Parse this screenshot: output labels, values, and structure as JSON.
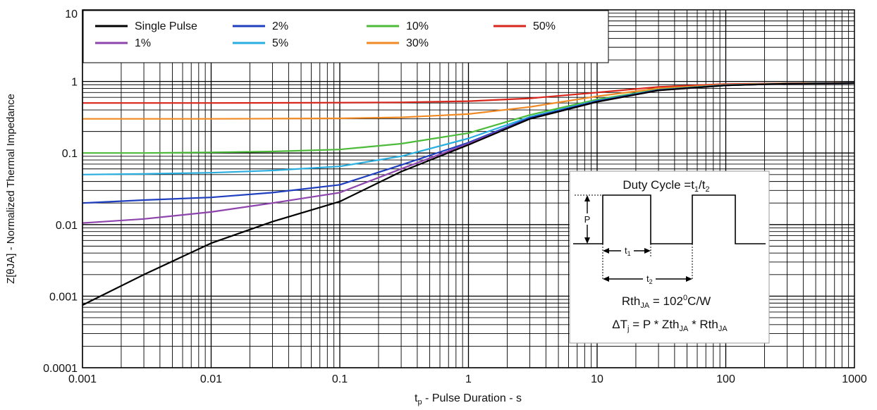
{
  "chart_data": {
    "type": "line",
    "title": "",
    "xlabel": "tp - Pulse Duration - s",
    "ylabel": "Z[θJA] - Normalized Thermal Impedance",
    "x_scale": "log",
    "y_scale": "log",
    "xlim": [
      0.001,
      1000
    ],
    "ylim": [
      0.0001,
      10
    ],
    "grid": true,
    "legend_position": "top-left",
    "x_ticks": [
      {
        "value": 0.001,
        "label": "0.001"
      },
      {
        "value": 0.01,
        "label": "0.01"
      },
      {
        "value": 0.1,
        "label": "0.1"
      },
      {
        "value": 1,
        "label": "1"
      },
      {
        "value": 10,
        "label": "10"
      },
      {
        "value": 100,
        "label": "100"
      },
      {
        "value": 1000,
        "label": "1000"
      }
    ],
    "y_ticks": [
      {
        "value": 0.0001,
        "label": "0.0001"
      },
      {
        "value": 0.001,
        "label": "0.001"
      },
      {
        "value": 0.01,
        "label": "0.01"
      },
      {
        "value": 0.1,
        "label": "0.1"
      },
      {
        "value": 1,
        "label": "1"
      },
      {
        "value": 10,
        "label": "10"
      }
    ],
    "series": [
      {
        "name": "Single Pulse",
        "color": "#000000",
        "x": [
          0.001,
          0.003,
          0.01,
          0.03,
          0.1,
          0.3,
          1,
          3,
          10,
          30,
          100,
          300,
          1000
        ],
        "y": [
          0.00075,
          0.002,
          0.0055,
          0.011,
          0.021,
          0.055,
          0.13,
          0.3,
          0.52,
          0.75,
          0.88,
          0.93,
          0.95
        ]
      },
      {
        "name": "1%",
        "color": "#8e44ad",
        "x": [
          0.001,
          0.003,
          0.01,
          0.03,
          0.1,
          0.3,
          1,
          3,
          10,
          30,
          100,
          300,
          1000
        ],
        "y": [
          0.0105,
          0.012,
          0.015,
          0.02,
          0.028,
          0.06,
          0.135,
          0.3,
          0.52,
          0.75,
          0.88,
          0.93,
          0.95
        ]
      },
      {
        "name": "2%",
        "color": "#1f3fbf",
        "x": [
          0.001,
          0.003,
          0.01,
          0.03,
          0.1,
          0.3,
          1,
          3,
          10,
          30,
          100,
          300,
          1000
        ],
        "y": [
          0.02,
          0.022,
          0.024,
          0.028,
          0.036,
          0.068,
          0.14,
          0.31,
          0.53,
          0.76,
          0.88,
          0.93,
          0.95
        ]
      },
      {
        "name": "5%",
        "color": "#29aee0",
        "x": [
          0.001,
          0.003,
          0.01,
          0.03,
          0.1,
          0.3,
          1,
          3,
          10,
          30,
          100,
          300,
          1000
        ],
        "y": [
          0.05,
          0.051,
          0.053,
          0.057,
          0.065,
          0.09,
          0.16,
          0.32,
          0.54,
          0.76,
          0.89,
          0.93,
          0.95
        ]
      },
      {
        "name": "10%",
        "color": "#4cbb3a",
        "x": [
          0.001,
          0.003,
          0.01,
          0.03,
          0.1,
          0.3,
          1,
          3,
          10,
          30,
          100,
          300,
          1000
        ],
        "y": [
          0.1,
          0.1,
          0.102,
          0.105,
          0.112,
          0.135,
          0.19,
          0.34,
          0.56,
          0.77,
          0.89,
          0.93,
          0.95
        ]
      },
      {
        "name": "30%",
        "color": "#f08a24",
        "x": [
          0.001,
          0.003,
          0.01,
          0.03,
          0.1,
          0.3,
          1,
          3,
          10,
          30,
          100,
          300,
          1000
        ],
        "y": [
          0.3,
          0.3,
          0.3,
          0.302,
          0.305,
          0.315,
          0.35,
          0.44,
          0.62,
          0.8,
          0.9,
          0.94,
          0.95
        ]
      },
      {
        "name": "50%",
        "color": "#d9261c",
        "x": [
          0.001,
          0.003,
          0.01,
          0.03,
          0.1,
          0.3,
          1,
          3,
          10,
          30,
          100,
          300,
          1000
        ],
        "y": [
          0.5,
          0.5,
          0.5,
          0.502,
          0.505,
          0.51,
          0.53,
          0.58,
          0.7,
          0.84,
          0.92,
          0.94,
          0.95
        ]
      }
    ],
    "annotation": {
      "duty_cycle": {
        "prefix": "Duty Cycle =t",
        "sub1": "1",
        "slash": "/t",
        "sub2": "2"
      },
      "p_label": "P",
      "t1": {
        "base": "t",
        "sub": "1"
      },
      "t2": {
        "base": "t",
        "sub": "2"
      },
      "rth": {
        "base": "Rth",
        "sub": "JA",
        "middle": " = 102",
        "sup": "0",
        "unit": "C/W"
      },
      "formula": {
        "delta": "ΔT",
        "delta_sub": "j",
        "part1": " = P * Zth",
        "part1_sub": "JA",
        "part2": " * Rth",
        "part2_sub": "JA"
      }
    }
  }
}
